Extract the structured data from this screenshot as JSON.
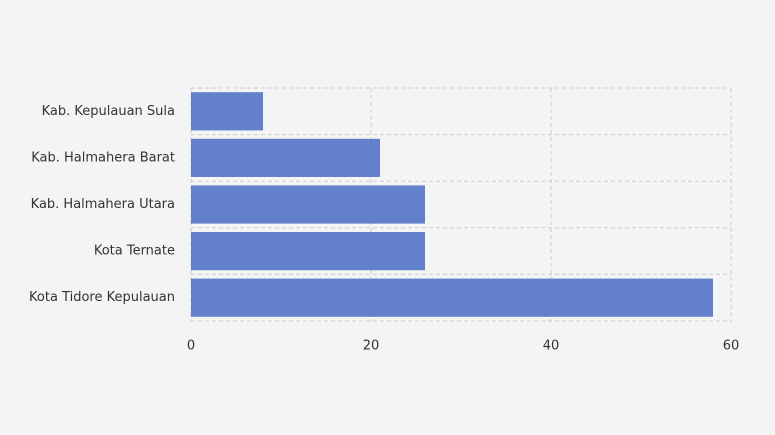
{
  "chart_data": {
    "type": "bar",
    "orientation": "horizontal",
    "categories": [
      "Kab. Kepulauan Sula",
      "Kab. Halmahera Barat",
      "Kab. Halmahera Utara",
      "Kota Ternate",
      "Kota Tidore Kepulauan"
    ],
    "values": [
      8,
      21,
      26,
      26,
      58
    ],
    "color": "#6380cc",
    "xlim": [
      0,
      60
    ],
    "xticks": [
      0,
      20,
      40,
      60
    ],
    "grid": true
  }
}
